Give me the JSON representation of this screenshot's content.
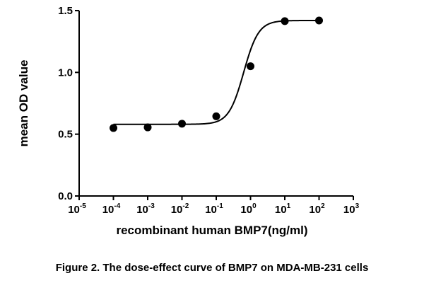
{
  "chart_data": {
    "type": "scatter",
    "x_scale": "log",
    "xlabel": "recombinant human BMP7(ng/ml)",
    "ylabel": "mean OD value",
    "xlim": [
      1e-05,
      1000
    ],
    "ylim": [
      0,
      1.5
    ],
    "x_ticks": [
      {
        "base": "10",
        "exp": "-5",
        "value": 1e-05
      },
      {
        "base": "10",
        "exp": "-4",
        "value": 0.0001
      },
      {
        "base": "10",
        "exp": "-3",
        "value": 0.001
      },
      {
        "base": "10",
        "exp": "-2",
        "value": 0.01
      },
      {
        "base": "10",
        "exp": "-1",
        "value": 0.1
      },
      {
        "base": "10",
        "exp": "0",
        "value": 1
      },
      {
        "base": "10",
        "exp": "1",
        "value": 10
      },
      {
        "base": "10",
        "exp": "2",
        "value": 100
      },
      {
        "base": "10",
        "exp": "3",
        "value": 1000
      }
    ],
    "y_ticks": [
      "0.0",
      "0.5",
      "1.0",
      "1.5"
    ],
    "series": [
      {
        "marker": "filled-circle",
        "color": "#000000",
        "points": [
          {
            "x": 0.0001,
            "y": 0.55
          },
          {
            "x": 0.001,
            "y": 0.555
          },
          {
            "x": 0.01,
            "y": 0.585
          },
          {
            "x": 0.1,
            "y": 0.645
          },
          {
            "x": 1,
            "y": 1.05
          },
          {
            "x": 10,
            "y": 1.415
          },
          {
            "x": 100,
            "y": 1.42
          }
        ]
      }
    ],
    "fit": {
      "type": "sigmoidal dose-response",
      "bottom": 0.58,
      "top": 1.42,
      "log_ec50": -0.2,
      "hill_slope": 2.0
    },
    "grid": false
  },
  "caption": "Figure 2. The dose-effect curve of BMP7 on MDA-MB-231 cells"
}
